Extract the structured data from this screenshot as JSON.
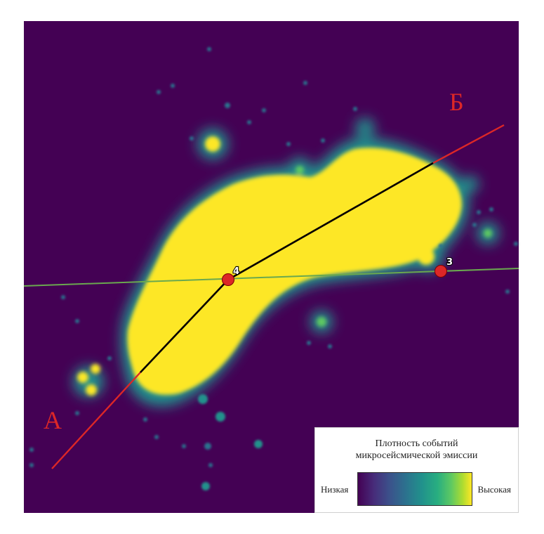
{
  "map": {
    "profile_labels": {
      "start": "А",
      "end": "Б"
    },
    "points": [
      {
        "id": "pt4",
        "label": "4"
      },
      {
        "id": "pt3",
        "label": "3"
      }
    ],
    "colors": {
      "background": "#440154",
      "high_density": "#fde725",
      "profile_line": "#dc2727",
      "profile_inside": "#000000",
      "cross_line": "#6aa84f",
      "point_fill": "#dc2727"
    }
  },
  "legend": {
    "title_line1": "Плотность событий",
    "title_line2": "микросейсмической эмиссии",
    "low_label": "Низкая",
    "high_label": "Высокая",
    "colormap": "viridis"
  }
}
